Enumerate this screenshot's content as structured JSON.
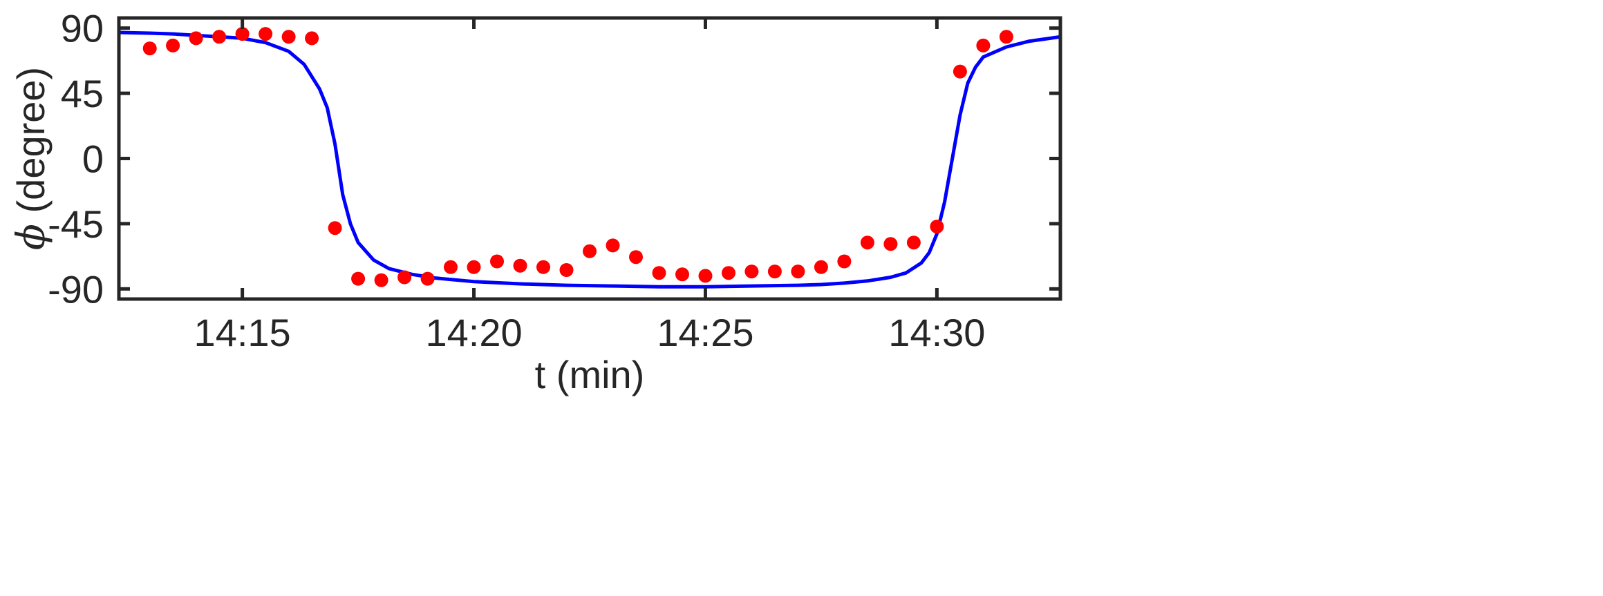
{
  "chart_data": {
    "type": "scatter",
    "xlabel": "t (min)",
    "ylabel": {
      "symbol": "ϕ",
      "text": " (degree)"
    },
    "xlim": [
      "14:12:20",
      "14:32:40"
    ],
    "ylim": [
      -97,
      97
    ],
    "x_ticks": [
      "14:15",
      "14:20",
      "14:25",
      "14:30"
    ],
    "y_ticks": [
      "90",
      "45",
      "0",
      "-45",
      "-90"
    ],
    "grid": false,
    "series": [
      {
        "style": "markers",
        "color": "#ff0000",
        "points": [
          [
            "14:13:00",
            76
          ],
          [
            "14:13:30",
            78
          ],
          [
            "14:14:00",
            83
          ],
          [
            "14:14:30",
            84
          ],
          [
            "14:15:00",
            86
          ],
          [
            "14:15:30",
            86
          ],
          [
            "14:16:00",
            84
          ],
          [
            "14:16:30",
            83
          ],
          [
            "14:17:00",
            -48
          ],
          [
            "14:17:30",
            -83
          ],
          [
            "14:18:00",
            -84
          ],
          [
            "14:18:30",
            -82
          ],
          [
            "14:19:00",
            -83
          ],
          [
            "14:19:30",
            -75
          ],
          [
            "14:20:00",
            -75
          ],
          [
            "14:20:30",
            -71
          ],
          [
            "14:21:00",
            -74
          ],
          [
            "14:21:30",
            -75
          ],
          [
            "14:22:00",
            -77
          ],
          [
            "14:22:30",
            -64
          ],
          [
            "14:23:00",
            -60
          ],
          [
            "14:23:30",
            -68
          ],
          [
            "14:24:00",
            -79
          ],
          [
            "14:24:30",
            -80
          ],
          [
            "14:25:00",
            -81
          ],
          [
            "14:25:30",
            -79
          ],
          [
            "14:26:00",
            -78
          ],
          [
            "14:26:30",
            -78
          ],
          [
            "14:27:00",
            -78
          ],
          [
            "14:27:30",
            -75
          ],
          [
            "14:28:00",
            -71
          ],
          [
            "14:28:30",
            -58
          ],
          [
            "14:29:00",
            -59
          ],
          [
            "14:29:30",
            -58
          ],
          [
            "14:30:00",
            -47
          ],
          [
            "14:30:30",
            60
          ],
          [
            "14:31:00",
            78
          ],
          [
            "14:31:30",
            84
          ]
        ]
      },
      {
        "style": "line",
        "color": "#0000ff",
        "points": [
          [
            "14:12:20",
            87
          ],
          [
            "14:13:00",
            86.5
          ],
          [
            "14:13:30",
            86
          ],
          [
            "14:14:00",
            85
          ],
          [
            "14:14:30",
            84
          ],
          [
            "14:15:00",
            83
          ],
          [
            "14:15:30",
            80
          ],
          [
            "14:16:00",
            74
          ],
          [
            "14:16:20",
            65
          ],
          [
            "14:16:40",
            48
          ],
          [
            "14:16:50",
            35
          ],
          [
            "14:17:00",
            10
          ],
          [
            "14:17:10",
            -25
          ],
          [
            "14:17:20",
            -45
          ],
          [
            "14:17:30",
            -58
          ],
          [
            "14:17:50",
            -70
          ],
          [
            "14:18:10",
            -76
          ],
          [
            "14:18:40",
            -80
          ],
          [
            "14:19:10",
            -82.5
          ],
          [
            "14:20:00",
            -85
          ],
          [
            "14:21:00",
            -86.5
          ],
          [
            "14:22:00",
            -87.5
          ],
          [
            "14:23:00",
            -88
          ],
          [
            "14:24:00",
            -88.5
          ],
          [
            "14:25:00",
            -88.5
          ],
          [
            "14:26:00",
            -88
          ],
          [
            "14:27:00",
            -87.5
          ],
          [
            "14:27:30",
            -87
          ],
          [
            "14:28:00",
            -86
          ],
          [
            "14:28:30",
            -84.5
          ],
          [
            "14:29:00",
            -82
          ],
          [
            "14:29:20",
            -79
          ],
          [
            "14:29:40",
            -72
          ],
          [
            "14:29:50",
            -65
          ],
          [
            "14:30:00",
            -52
          ],
          [
            "14:30:10",
            -30
          ],
          [
            "14:30:20",
            0
          ],
          [
            "14:30:30",
            30
          ],
          [
            "14:30:40",
            52
          ],
          [
            "14:30:50",
            63
          ],
          [
            "14:31:00",
            70
          ],
          [
            "14:31:30",
            77
          ],
          [
            "14:32:00",
            81
          ],
          [
            "14:32:40",
            84
          ]
        ]
      }
    ]
  }
}
